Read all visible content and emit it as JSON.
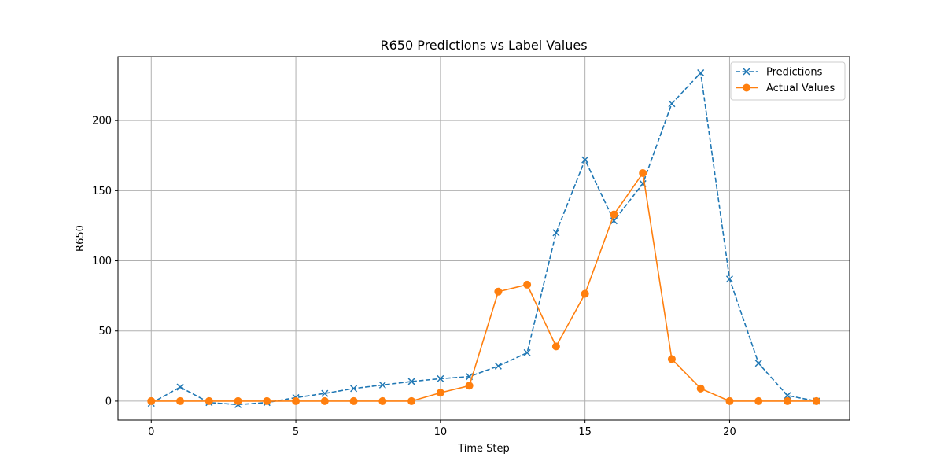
{
  "chart_data": {
    "type": "line",
    "title": "R650 Predictions vs Label Values",
    "xlabel": "Time Step",
    "ylabel": "R650",
    "xlim": [
      -1.15,
      24.15
    ],
    "ylim": [
      -13.5,
      245.5
    ],
    "xticks": [
      0,
      5,
      10,
      15,
      20
    ],
    "yticks": [
      0,
      50,
      100,
      150,
      200
    ],
    "grid": true,
    "legend_position": "top-right",
    "x": [
      0,
      1,
      2,
      3,
      4,
      5,
      6,
      7,
      8,
      9,
      10,
      11,
      12,
      13,
      14,
      15,
      16,
      17,
      18,
      19,
      20,
      21,
      22,
      23
    ],
    "series": [
      {
        "name": "Predictions",
        "color": "#1f77b4",
        "line_style": "dashed",
        "marker": "x",
        "values": [
          -1.5,
          10,
          -1,
          -2.5,
          -1,
          2.5,
          5.5,
          9,
          11.5,
          14,
          16,
          17.5,
          25,
          34.5,
          120,
          172,
          128.5,
          155,
          212,
          234,
          87,
          27,
          4,
          0
        ]
      },
      {
        "name": "Actual Values",
        "color": "#ff7f0e",
        "line_style": "solid",
        "marker": "circle",
        "values": [
          0,
          0,
          0,
          0,
          0,
          0,
          0,
          0,
          0,
          0,
          6,
          11,
          78,
          83,
          39,
          76.5,
          133,
          162.5,
          30,
          9,
          0,
          0,
          0,
          0
        ]
      }
    ]
  }
}
